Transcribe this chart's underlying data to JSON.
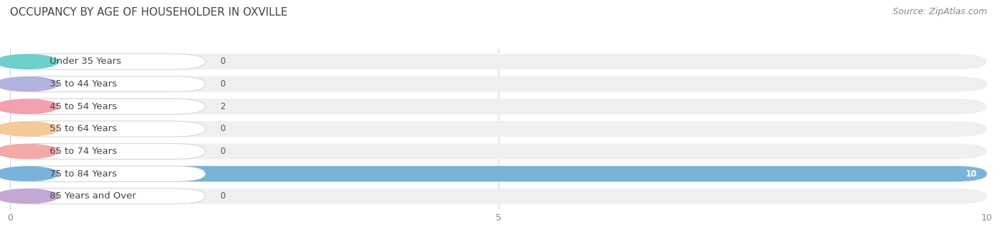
{
  "title": "OCCUPANCY BY AGE OF HOUSEHOLDER IN OXVILLE",
  "source": "Source: ZipAtlas.com",
  "categories": [
    "Under 35 Years",
    "35 to 44 Years",
    "45 to 54 Years",
    "55 to 64 Years",
    "65 to 74 Years",
    "75 to 84 Years",
    "85 Years and Over"
  ],
  "values": [
    0,
    0,
    2,
    0,
    0,
    10,
    0
  ],
  "bar_colors": [
    "#6ecfcb",
    "#b3b3e0",
    "#f4a0b0",
    "#f5c99a",
    "#f2aaa8",
    "#7ab3d9",
    "#c4a8d4"
  ],
  "xlim_data": [
    0,
    10
  ],
  "xticks": [
    0,
    5,
    10
  ],
  "background_color": "#ffffff",
  "row_bg_color": "#efefef",
  "title_fontsize": 11,
  "label_fontsize": 9.5,
  "value_fontsize": 8.5,
  "source_fontsize": 9
}
